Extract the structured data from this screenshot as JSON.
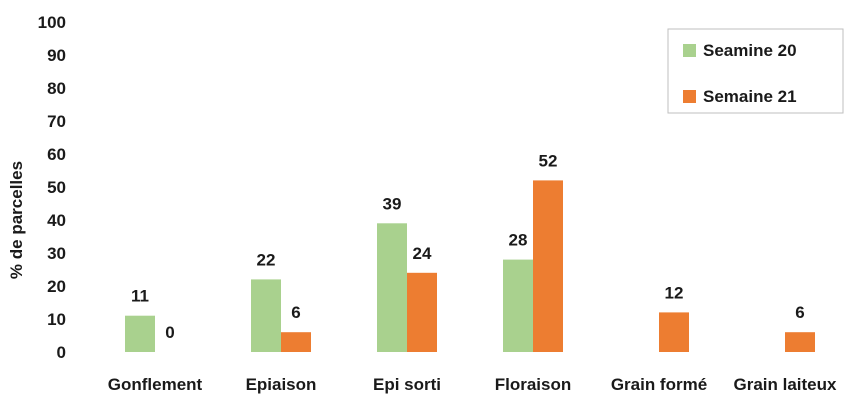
{
  "chart_data": {
    "type": "bar",
    "categories": [
      "Gonflement",
      "Epiaison",
      "Epi sorti",
      "Floraison",
      "Grain formé",
      "Grain laiteux"
    ],
    "series": [
      {
        "name": "Seamine 20",
        "values": [
          11,
          22,
          39,
          28,
          null,
          null
        ],
        "labels": [
          "11",
          "22",
          "39",
          "28",
          "",
          ""
        ],
        "color": "#a9d18e"
      },
      {
        "name": "Semaine 21",
        "values": [
          0,
          6,
          24,
          52,
          12,
          6
        ],
        "labels": [
          "0",
          "6",
          "24",
          "52",
          "12",
          "6"
        ],
        "color": "#ed7d31"
      }
    ],
    "title": "",
    "xlabel": "",
    "ylabel": "% de parcelles",
    "ylim": [
      0,
      100
    ],
    "yticks": [
      "0",
      "10",
      "20",
      "30",
      "40",
      "50",
      "60",
      "70",
      "80",
      "90",
      "100"
    ],
    "grid": false,
    "legend": "top-right"
  }
}
